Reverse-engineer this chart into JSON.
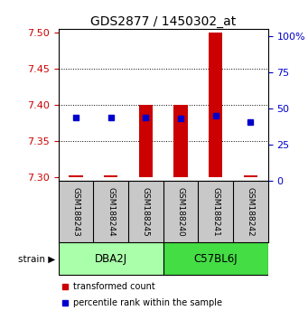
{
  "title": "GDS2877 / 1450302_at",
  "samples": [
    "GSM188243",
    "GSM188244",
    "GSM188245",
    "GSM188240",
    "GSM188241",
    "GSM188242"
  ],
  "groups": [
    {
      "label": "DBA2J",
      "indices": [
        0,
        1,
        2
      ],
      "color": "#AAFFAA"
    },
    {
      "label": "C57BL6J",
      "indices": [
        3,
        4,
        5
      ],
      "color": "#44DD44"
    }
  ],
  "ylim_left": [
    7.295,
    7.505
  ],
  "ylim_right": [
    0,
    105
  ],
  "yticks_left": [
    7.3,
    7.35,
    7.4,
    7.45,
    7.5
  ],
  "yticks_right": [
    0,
    25,
    50,
    75,
    100
  ],
  "ytick_labels_right": [
    "0",
    "25",
    "50",
    "75",
    "100%"
  ],
  "red_bar_bottom": [
    7.3,
    7.3,
    7.3,
    7.3,
    7.3,
    7.3
  ],
  "red_bar_top": [
    7.303,
    7.303,
    7.4,
    7.4,
    7.5,
    7.303
  ],
  "blue_y": [
    7.383,
    7.383,
    7.383,
    7.381,
    7.385,
    7.377
  ],
  "left_color": "#CC0000",
  "right_color": "#0000CC",
  "bar_color": "#CC0000",
  "blue_color": "#0000CC",
  "bar_width": 0.4,
  "grid_color": "#888888",
  "bg_color": "#FFFFFF",
  "sample_box_color": "#C8C8C8",
  "legend_red_label": "transformed count",
  "legend_blue_label": "percentile rank within the sample",
  "strain_label": "strain"
}
